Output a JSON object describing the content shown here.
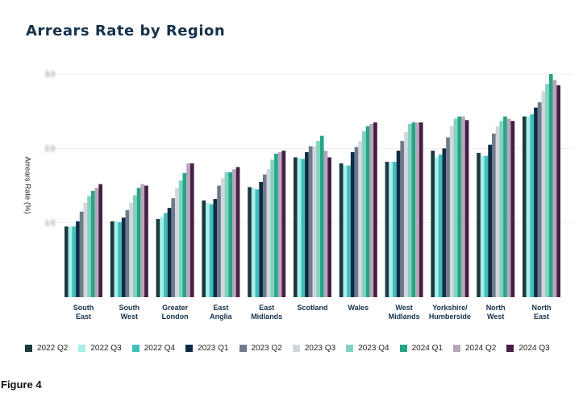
{
  "chart_data": {
    "type": "bar",
    "title": "Arrears Rate by Region",
    "ylabel": "Arrears Rate (%)",
    "xlabel": "",
    "y_tick_labels_blurred": true,
    "ylim": [
      0,
      3.0
    ],
    "yticks": [
      1,
      2,
      3
    ],
    "grid": true,
    "legend_position": "bottom",
    "categories": [
      [
        "South",
        "East"
      ],
      [
        "South",
        "West"
      ],
      [
        "Greater",
        "London"
      ],
      [
        "East",
        "Anglia"
      ],
      [
        "East",
        "Midlands"
      ],
      [
        "Scotland"
      ],
      [
        "Wales"
      ],
      [
        "West",
        "Midlands"
      ],
      [
        "Yorkshire/",
        "Humberside"
      ],
      [
        "North",
        "West"
      ],
      [
        "North",
        "East"
      ]
    ],
    "series": [
      {
        "name": "2022 Q2",
        "color": "#1b3a40",
        "values": [
          0.95,
          1.02,
          1.05,
          1.3,
          1.48,
          1.88,
          1.8,
          1.82,
          1.97,
          1.94,
          2.43
        ]
      },
      {
        "name": "2022 Q3",
        "color": "#a8eeea",
        "values": [
          0.95,
          1.02,
          1.08,
          1.27,
          1.47,
          1.87,
          1.77,
          1.82,
          1.88,
          1.9,
          2.43
        ]
      },
      {
        "name": "2022 Q4",
        "color": "#3fbfbb",
        "values": [
          0.95,
          1.01,
          1.13,
          1.25,
          1.45,
          1.86,
          1.77,
          1.82,
          1.92,
          1.9,
          2.46
        ]
      },
      {
        "name": "2023 Q1",
        "color": "#0f2a45",
        "values": [
          1.02,
          1.07,
          1.2,
          1.32,
          1.55,
          1.95,
          1.95,
          1.97,
          2.0,
          2.05,
          2.55
        ]
      },
      {
        "name": "2023 Q2",
        "color": "#6d7b8a",
        "values": [
          1.15,
          1.17,
          1.33,
          1.5,
          1.65,
          2.03,
          2.02,
          2.1,
          2.15,
          2.2,
          2.62
        ]
      },
      {
        "name": "2023 Q3",
        "color": "#d2d7dd",
        "values": [
          1.27,
          1.27,
          1.47,
          1.6,
          1.72,
          2.03,
          2.1,
          2.22,
          2.3,
          2.3,
          2.77
        ]
      },
      {
        "name": "2023 Q4",
        "color": "#82d2c0",
        "values": [
          1.36,
          1.37,
          1.57,
          1.68,
          1.85,
          2.1,
          2.23,
          2.33,
          2.4,
          2.37,
          2.87
        ]
      },
      {
        "name": "2024 Q1",
        "color": "#26a584",
        "values": [
          1.43,
          1.47,
          1.67,
          1.68,
          1.93,
          2.17,
          2.3,
          2.35,
          2.43,
          2.43,
          3.0
        ]
      },
      {
        "name": "2024 Q2",
        "color": "#b7a6bb",
        "values": [
          1.47,
          1.52,
          1.8,
          1.72,
          1.95,
          1.97,
          2.33,
          2.35,
          2.43,
          2.4,
          2.92
        ]
      },
      {
        "name": "2024 Q3",
        "color": "#461e45",
        "values": [
          1.52,
          1.5,
          1.8,
          1.75,
          1.97,
          1.88,
          2.35,
          2.35,
          2.38,
          2.37,
          2.85
        ]
      }
    ]
  },
  "figure_label": "Figure 4"
}
